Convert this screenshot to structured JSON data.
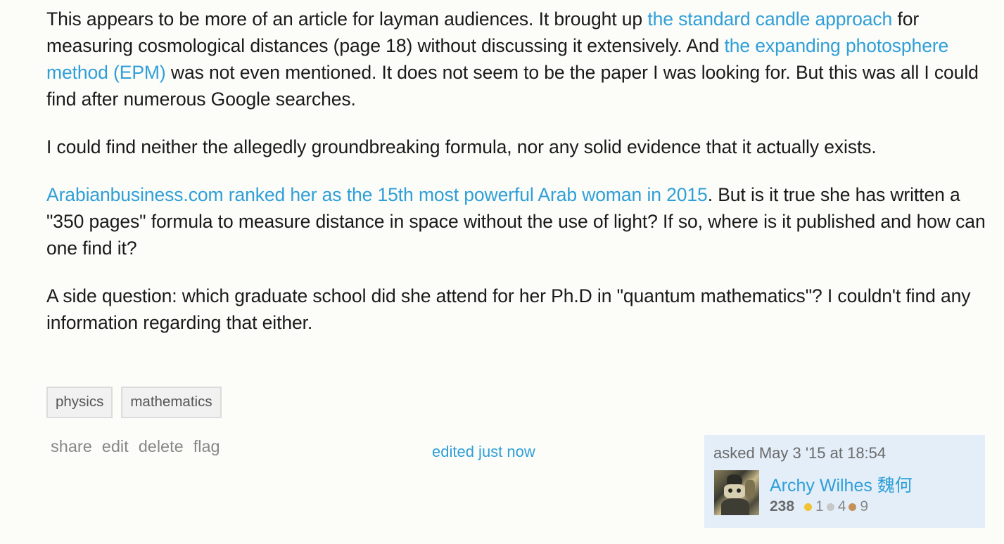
{
  "post": {
    "p1": {
      "t1": "This appears to be more of an article for layman audiences. It brought up ",
      "link1": "the standard candle approach",
      "t2": " for measuring cosmological distances (page 18) without discussing it extensively. And ",
      "link2": "the expanding photosphere method (EPM)",
      "t3": " was not even mentioned. It does not seem to be the paper I was looking for. But this was all I could find after numerous Google searches."
    },
    "p2": "I could find neither the allegedly groundbreaking formula, nor any solid evidence that it actually exists.",
    "p3": {
      "link": "Arabianbusiness.com ranked her as the 15th most powerful Arab woman in 2015",
      "t1": ". But is it true she has written a \"350 pages\" formula to measure distance in space without the use of light? If so, where is it published and how can one find it?"
    },
    "p4": "A side question: which graduate school did she attend for her Ph.D in \"quantum mathematics\"? I couldn't find any information regarding that either."
  },
  "tags": [
    "physics",
    "mathematics"
  ],
  "actions": {
    "share": "share",
    "edit": "edit",
    "delete": "delete",
    "flag": "flag"
  },
  "edited": "edited just now",
  "owner": {
    "asked": "asked May 3 '15 at 18:54",
    "name": "Archy Wilhes 魏何",
    "reputation": "238",
    "gold": "1",
    "silver": "4",
    "bronze": "9"
  },
  "colors": {
    "link": "#2f9fd8",
    "owner_bg": "#e3eef9",
    "gold": "#f1c232",
    "silver": "#c8c8c8",
    "bronze": "#c4915a"
  }
}
